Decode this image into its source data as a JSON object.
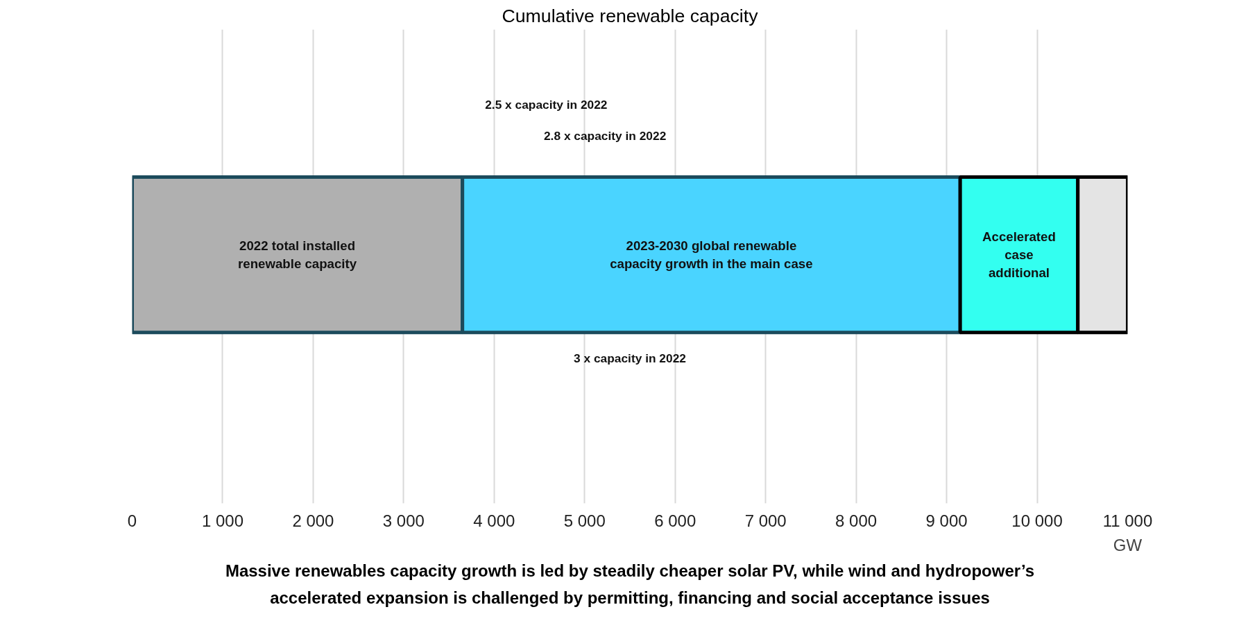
{
  "chart_data": {
    "type": "bar",
    "orientation": "horizontal",
    "stacked": true,
    "title": "Cumulative renewable capacity",
    "xlabel": "GW",
    "categories": [
      null
    ],
    "series": [
      {
        "name": "2022 total installed renewable capacity",
        "color": "#b0b0b0",
        "values": [
          3650
        ]
      },
      {
        "name": "2023-2030 global renewable capacity growth in the main case",
        "color": "#4ad4ff",
        "values": [
          5500
        ]
      },
      {
        "name": "Accelerated case additional",
        "color": "#33fff0",
        "values": [
          1300
        ]
      },
      {
        "color": "#e4e4e4",
        "values": [
          550
        ]
      }
    ],
    "xlim": [
      0,
      11000
    ],
    "xticks": [
      0,
      {
        "value": 1000,
        "label": "1 000"
      },
      {
        "value": 2000,
        "label": "2 000"
      },
      {
        "value": 3000,
        "label": "3 000"
      },
      {
        "value": 4000,
        "label": "4 000"
      },
      {
        "value": 5000,
        "label": "5 000"
      },
      {
        "value": 6000,
        "label": "6 000"
      },
      {
        "value": 7000,
        "label": "7 000"
      },
      {
        "value": 8000,
        "label": "8 000"
      },
      {
        "value": 9000,
        "label": "9 000"
      },
      {
        "value": 10000,
        "label": "10 000"
      },
      {
        "value": 11000,
        "label": "11 000"
      }
    ],
    "grid": "x",
    "annotations": [
      "2.5 x capacity in 2022",
      "2.8 x capacity in 2022",
      "3 x capacity in 2022",
      "Massive renewables capacity growth is led by steadily cheaper solar PV, while wind and hydropower’s accelerated expansion is challenged by permitting, financing and social acceptance issues"
    ]
  }
}
